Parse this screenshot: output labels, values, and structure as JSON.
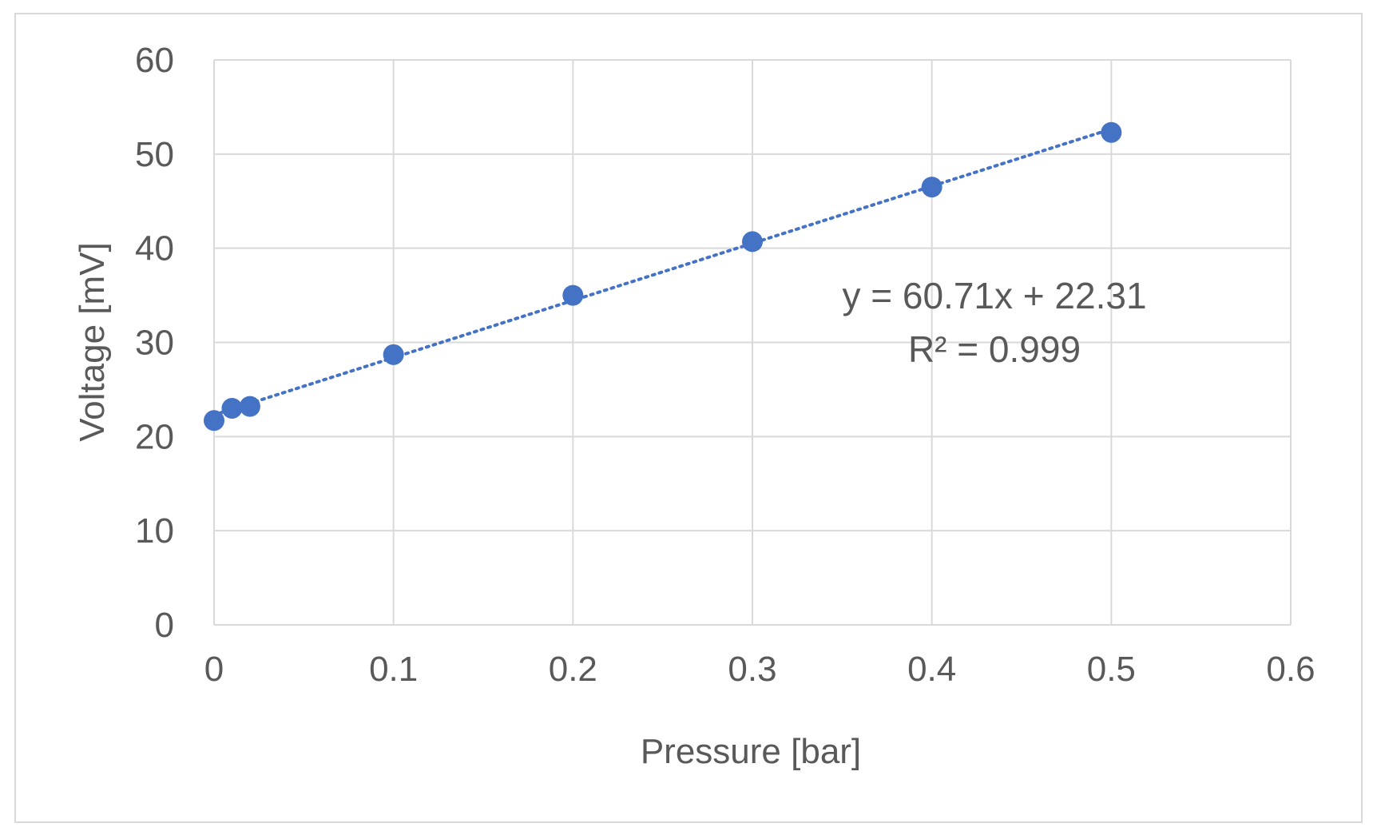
{
  "chart_data": {
    "type": "scatter",
    "xlabel": "Pressure [bar]",
    "ylabel": "Voltage [mV]",
    "xlim": [
      0,
      0.6
    ],
    "ylim": [
      0,
      60
    ],
    "xticks": [
      0,
      0.1,
      0.2,
      0.3,
      0.4,
      0.5,
      0.6
    ],
    "yticks": [
      0,
      10,
      20,
      30,
      40,
      50,
      60
    ],
    "xtick_labels": [
      "0",
      "0.1",
      "0.2",
      "0.3",
      "0.4",
      "0.5",
      "0.6"
    ],
    "ytick_labels": [
      "0",
      "10",
      "20",
      "30",
      "40",
      "50",
      "60"
    ],
    "grid": true,
    "legend": "none",
    "marker_color": "#4472c4",
    "series": [
      {
        "x": [
          0,
          0.01,
          0.02,
          0.1,
          0.2,
          0.3,
          0.4,
          0.5
        ],
        "y": [
          21.7,
          23.0,
          23.2,
          28.7,
          35.0,
          40.7,
          46.5,
          52.3
        ]
      }
    ],
    "trendline": {
      "type": "linear",
      "style": "dotted",
      "color": "#4472c4",
      "slope": 60.71,
      "intercept": 22.31,
      "x_range": [
        0,
        0.5
      ],
      "equation_text": "y = 60.71x + 22.31",
      "r2_text": "R² = 0.999"
    }
  }
}
